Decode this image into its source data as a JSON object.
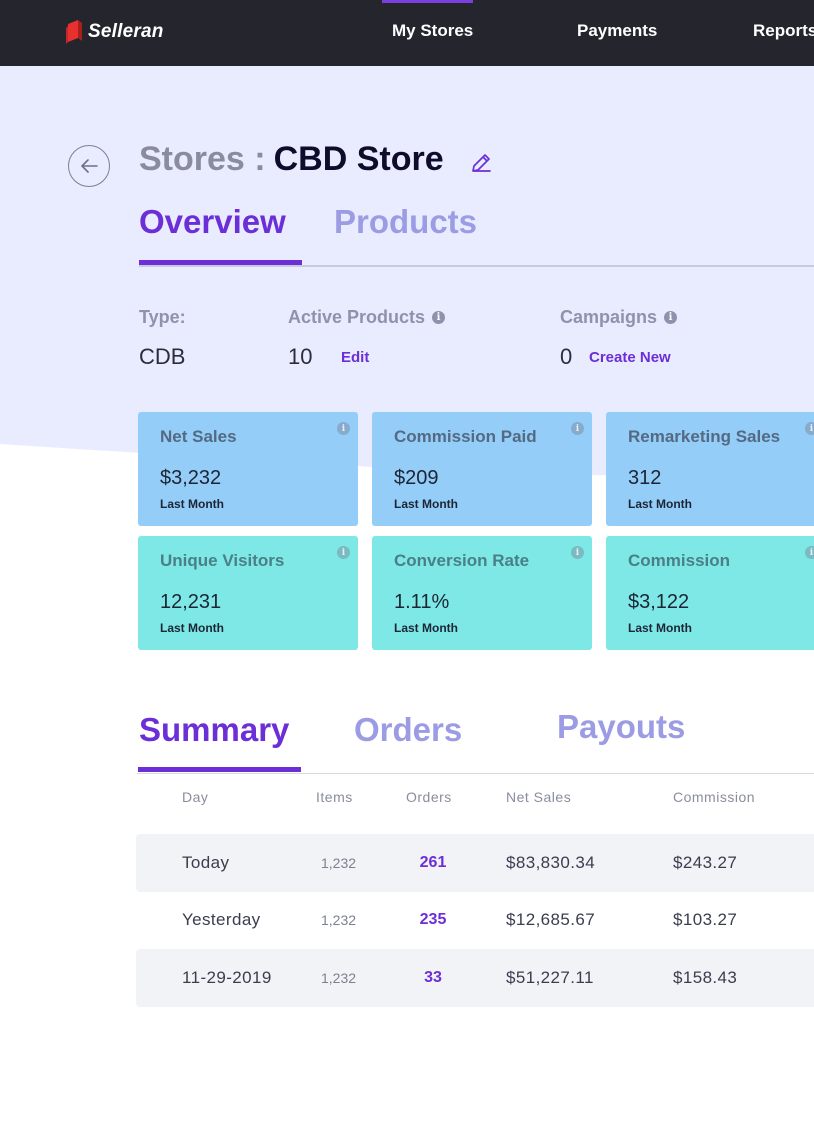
{
  "brand": {
    "name": "Selleran",
    "logo_color": "#e8312f"
  },
  "nav": {
    "items": [
      {
        "label": "My Stores",
        "active": true
      },
      {
        "label": "Payments",
        "active": false
      },
      {
        "label": "Reports",
        "active": false
      }
    ]
  },
  "page": {
    "title_prefix": "Stores :",
    "store_name": "CBD Store",
    "back_icon": "arrow-left-icon",
    "edit_icon": "pencil-icon",
    "tabs": [
      {
        "label": "Overview",
        "active": true
      },
      {
        "label": "Products",
        "active": false
      }
    ]
  },
  "meta": {
    "type": {
      "label": "Type:",
      "value": "CDB"
    },
    "active_products": {
      "label": "Active Products",
      "value": "10",
      "link": "Edit"
    },
    "campaigns": {
      "label": "Campaigns",
      "value": "0",
      "link": "Create New"
    }
  },
  "cards": [
    {
      "title": "Net Sales",
      "value": "$3,232",
      "period": "Last Month",
      "color": "#93cdf8"
    },
    {
      "title": "Commission Paid",
      "value": "$209",
      "period": "Last Month",
      "color": "#93cdf8"
    },
    {
      "title": "Remarketing Sales",
      "value": "312",
      "period": "Last Month",
      "color": "#93cdf8"
    },
    {
      "title": "Unique Visitors",
      "value": "12,231",
      "period": "Last Month",
      "color": "#7de8e6"
    },
    {
      "title": "Conversion Rate",
      "value": "1.11%",
      "period": "Last Month",
      "color": "#7de8e6"
    },
    {
      "title": "Commission",
      "value": "$3,122",
      "period": "Last Month",
      "color": "#7de8e6"
    }
  ],
  "summary": {
    "tabs": [
      {
        "label": "Summary",
        "active": true
      },
      {
        "label": "Orders",
        "active": false
      },
      {
        "label": "Payouts",
        "active": false
      }
    ],
    "columns": [
      "Day",
      "Items",
      "Orders",
      "Net Sales",
      "Commission"
    ],
    "rows": [
      {
        "day": "Today",
        "items": "1,232",
        "orders": "261",
        "net_sales": "$83,830.34",
        "commission": "$243.27"
      },
      {
        "day": "Yesterday",
        "items": "1,232",
        "orders": "235",
        "net_sales": "$12,685.67",
        "commission": "$103.27"
      },
      {
        "day": "11-29-2019",
        "items": "1,232",
        "orders": "33",
        "net_sales": "$51,227.11",
        "commission": "$158.43"
      }
    ]
  },
  "colors": {
    "accent": "#6c2ed6",
    "tab_inactive": "#9b9ce3",
    "topbar": "#25252d",
    "hero_bg": "#e8ecfe"
  }
}
